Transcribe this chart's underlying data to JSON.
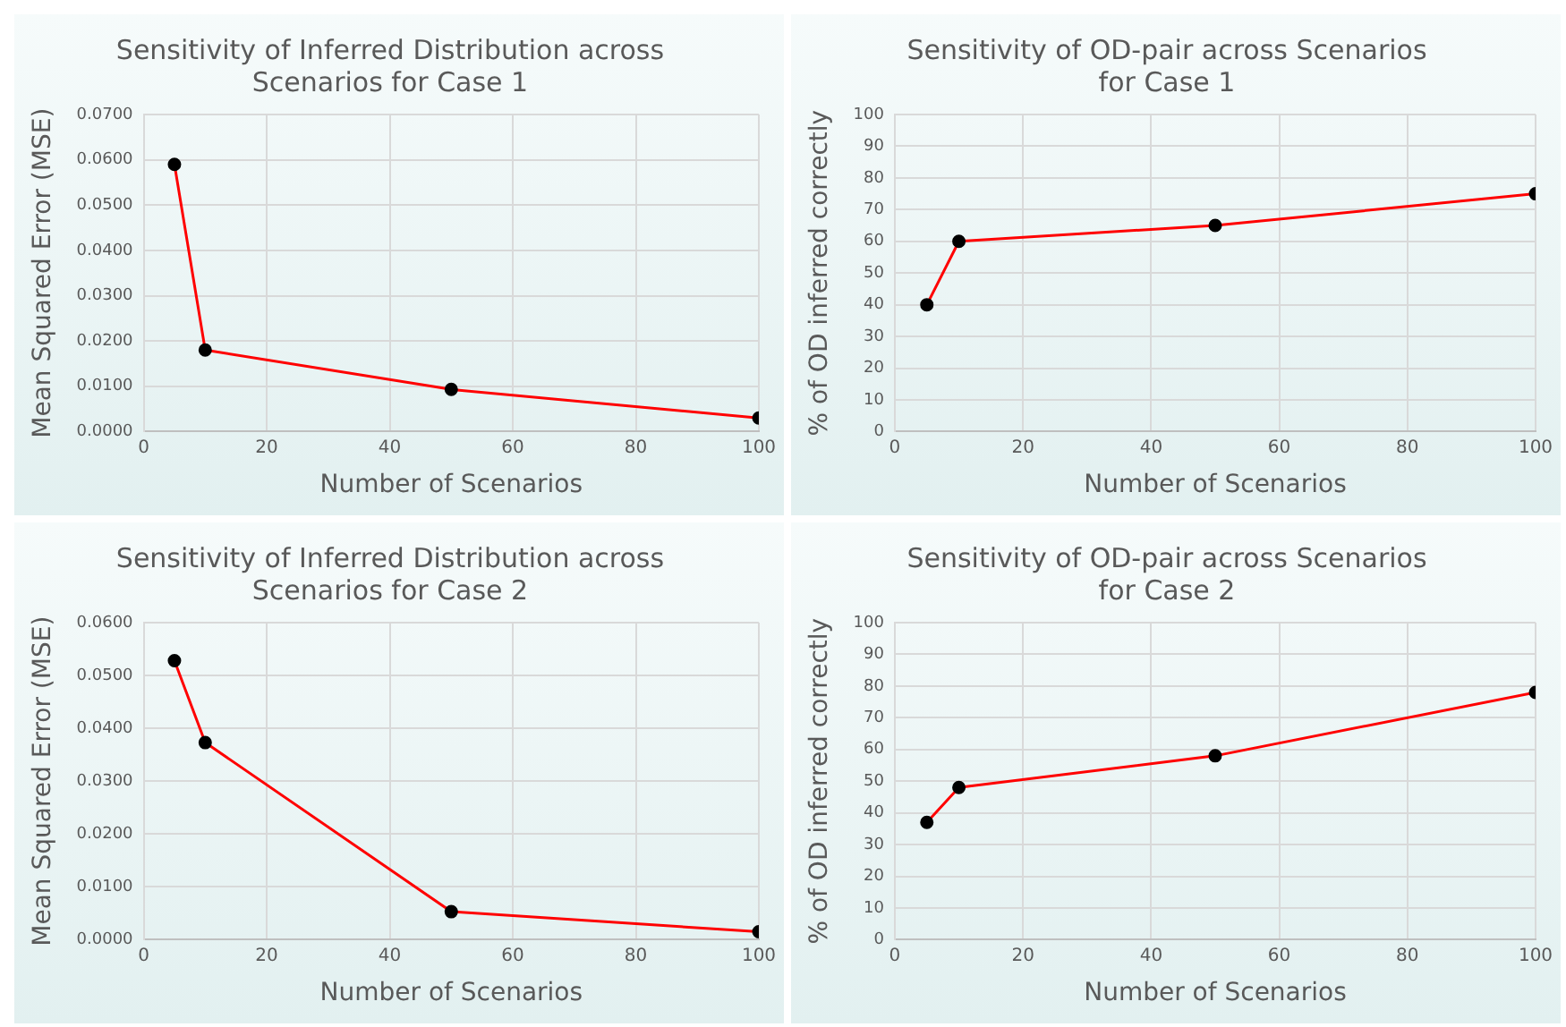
{
  "chart_data": [
    {
      "type": "line",
      "title": "Sensitivity of Inferred Distribution across Scenarios for Case 1",
      "xlabel": "Number of Scenarios",
      "ylabel": "Mean Squared Error (MSE)",
      "x": [
        5,
        10,
        50,
        100
      ],
      "series": [
        {
          "color": "#ff0000",
          "values": [
            0.059,
            0.018,
            0.0093,
            0.003
          ]
        }
      ],
      "xlim": [
        0,
        100
      ],
      "xticks": [
        0,
        20,
        40,
        60,
        80,
        100
      ],
      "ylim": [
        0,
        0.07
      ],
      "yticks": [
        {
          "value": 0,
          "label": "0.0000"
        },
        {
          "value": 0.01,
          "label": "0.0100"
        },
        {
          "value": 0.02,
          "label": "0.0200"
        },
        {
          "value": 0.03,
          "label": "0.0300"
        },
        {
          "value": 0.04,
          "label": "0.0400"
        },
        {
          "value": 0.05,
          "label": "0.0500"
        },
        {
          "value": 0.06,
          "label": "0.0600"
        },
        {
          "value": 0.07,
          "label": "0.0700"
        }
      ],
      "grid": true,
      "marker": "circle",
      "line_style": "solid"
    },
    {
      "type": "line",
      "title": "Sensitivity of OD-pair across Scenarios for Case 1",
      "xlabel": "Number of Scenarios",
      "ylabel": "% of OD inferred correctly",
      "x": [
        5,
        10,
        50,
        100
      ],
      "series": [
        {
          "color": "#ff0000",
          "values": [
            40,
            60,
            65,
            75
          ]
        }
      ],
      "xlim": [
        0,
        100
      ],
      "xticks": [
        0,
        20,
        40,
        60,
        80,
        100
      ],
      "ylim": [
        0,
        100
      ],
      "yticks": [
        0,
        10,
        20,
        30,
        40,
        50,
        60,
        70,
        80,
        90,
        100
      ],
      "grid": true,
      "marker": "circle",
      "line_style": "solid"
    },
    {
      "type": "line",
      "title": "Sensitivity of Inferred Distribution across Scenarios for Case 2",
      "xlabel": "Number of Scenarios",
      "ylabel": "Mean Squared Error (MSE)",
      "x": [
        5,
        10,
        50,
        100
      ],
      "series": [
        {
          "color": "#ff0000",
          "values": [
            0.0528,
            0.0373,
            0.0053,
            0.0015
          ]
        }
      ],
      "xlim": [
        0,
        100
      ],
      "xticks": [
        0,
        20,
        40,
        60,
        80,
        100
      ],
      "ylim": [
        0,
        0.06
      ],
      "yticks": [
        {
          "value": 0,
          "label": "0.0000"
        },
        {
          "value": 0.01,
          "label": "0.0100"
        },
        {
          "value": 0.02,
          "label": "0.0200"
        },
        {
          "value": 0.03,
          "label": "0.0300"
        },
        {
          "value": 0.04,
          "label": "0.0400"
        },
        {
          "value": 0.05,
          "label": "0.0500"
        },
        {
          "value": 0.06,
          "label": "0.0600"
        }
      ],
      "grid": true,
      "marker": "circle",
      "line_style": "solid"
    },
    {
      "type": "line",
      "title": "Sensitivity of OD-pair across Scenarios for Case 2",
      "xlabel": "Number of Scenarios",
      "ylabel": "% of OD inferred correctly",
      "x": [
        5,
        10,
        50,
        100
      ],
      "series": [
        {
          "color": "#ff0000",
          "values": [
            37,
            48,
            58,
            78
          ]
        }
      ],
      "xlim": [
        0,
        100
      ],
      "xticks": [
        0,
        20,
        40,
        60,
        80,
        100
      ],
      "ylim": [
        0,
        100
      ],
      "yticks": [
        0,
        10,
        20,
        30,
        40,
        50,
        60,
        70,
        80,
        90,
        100
      ],
      "grid": true,
      "marker": "circle",
      "line_style": "solid"
    }
  ]
}
